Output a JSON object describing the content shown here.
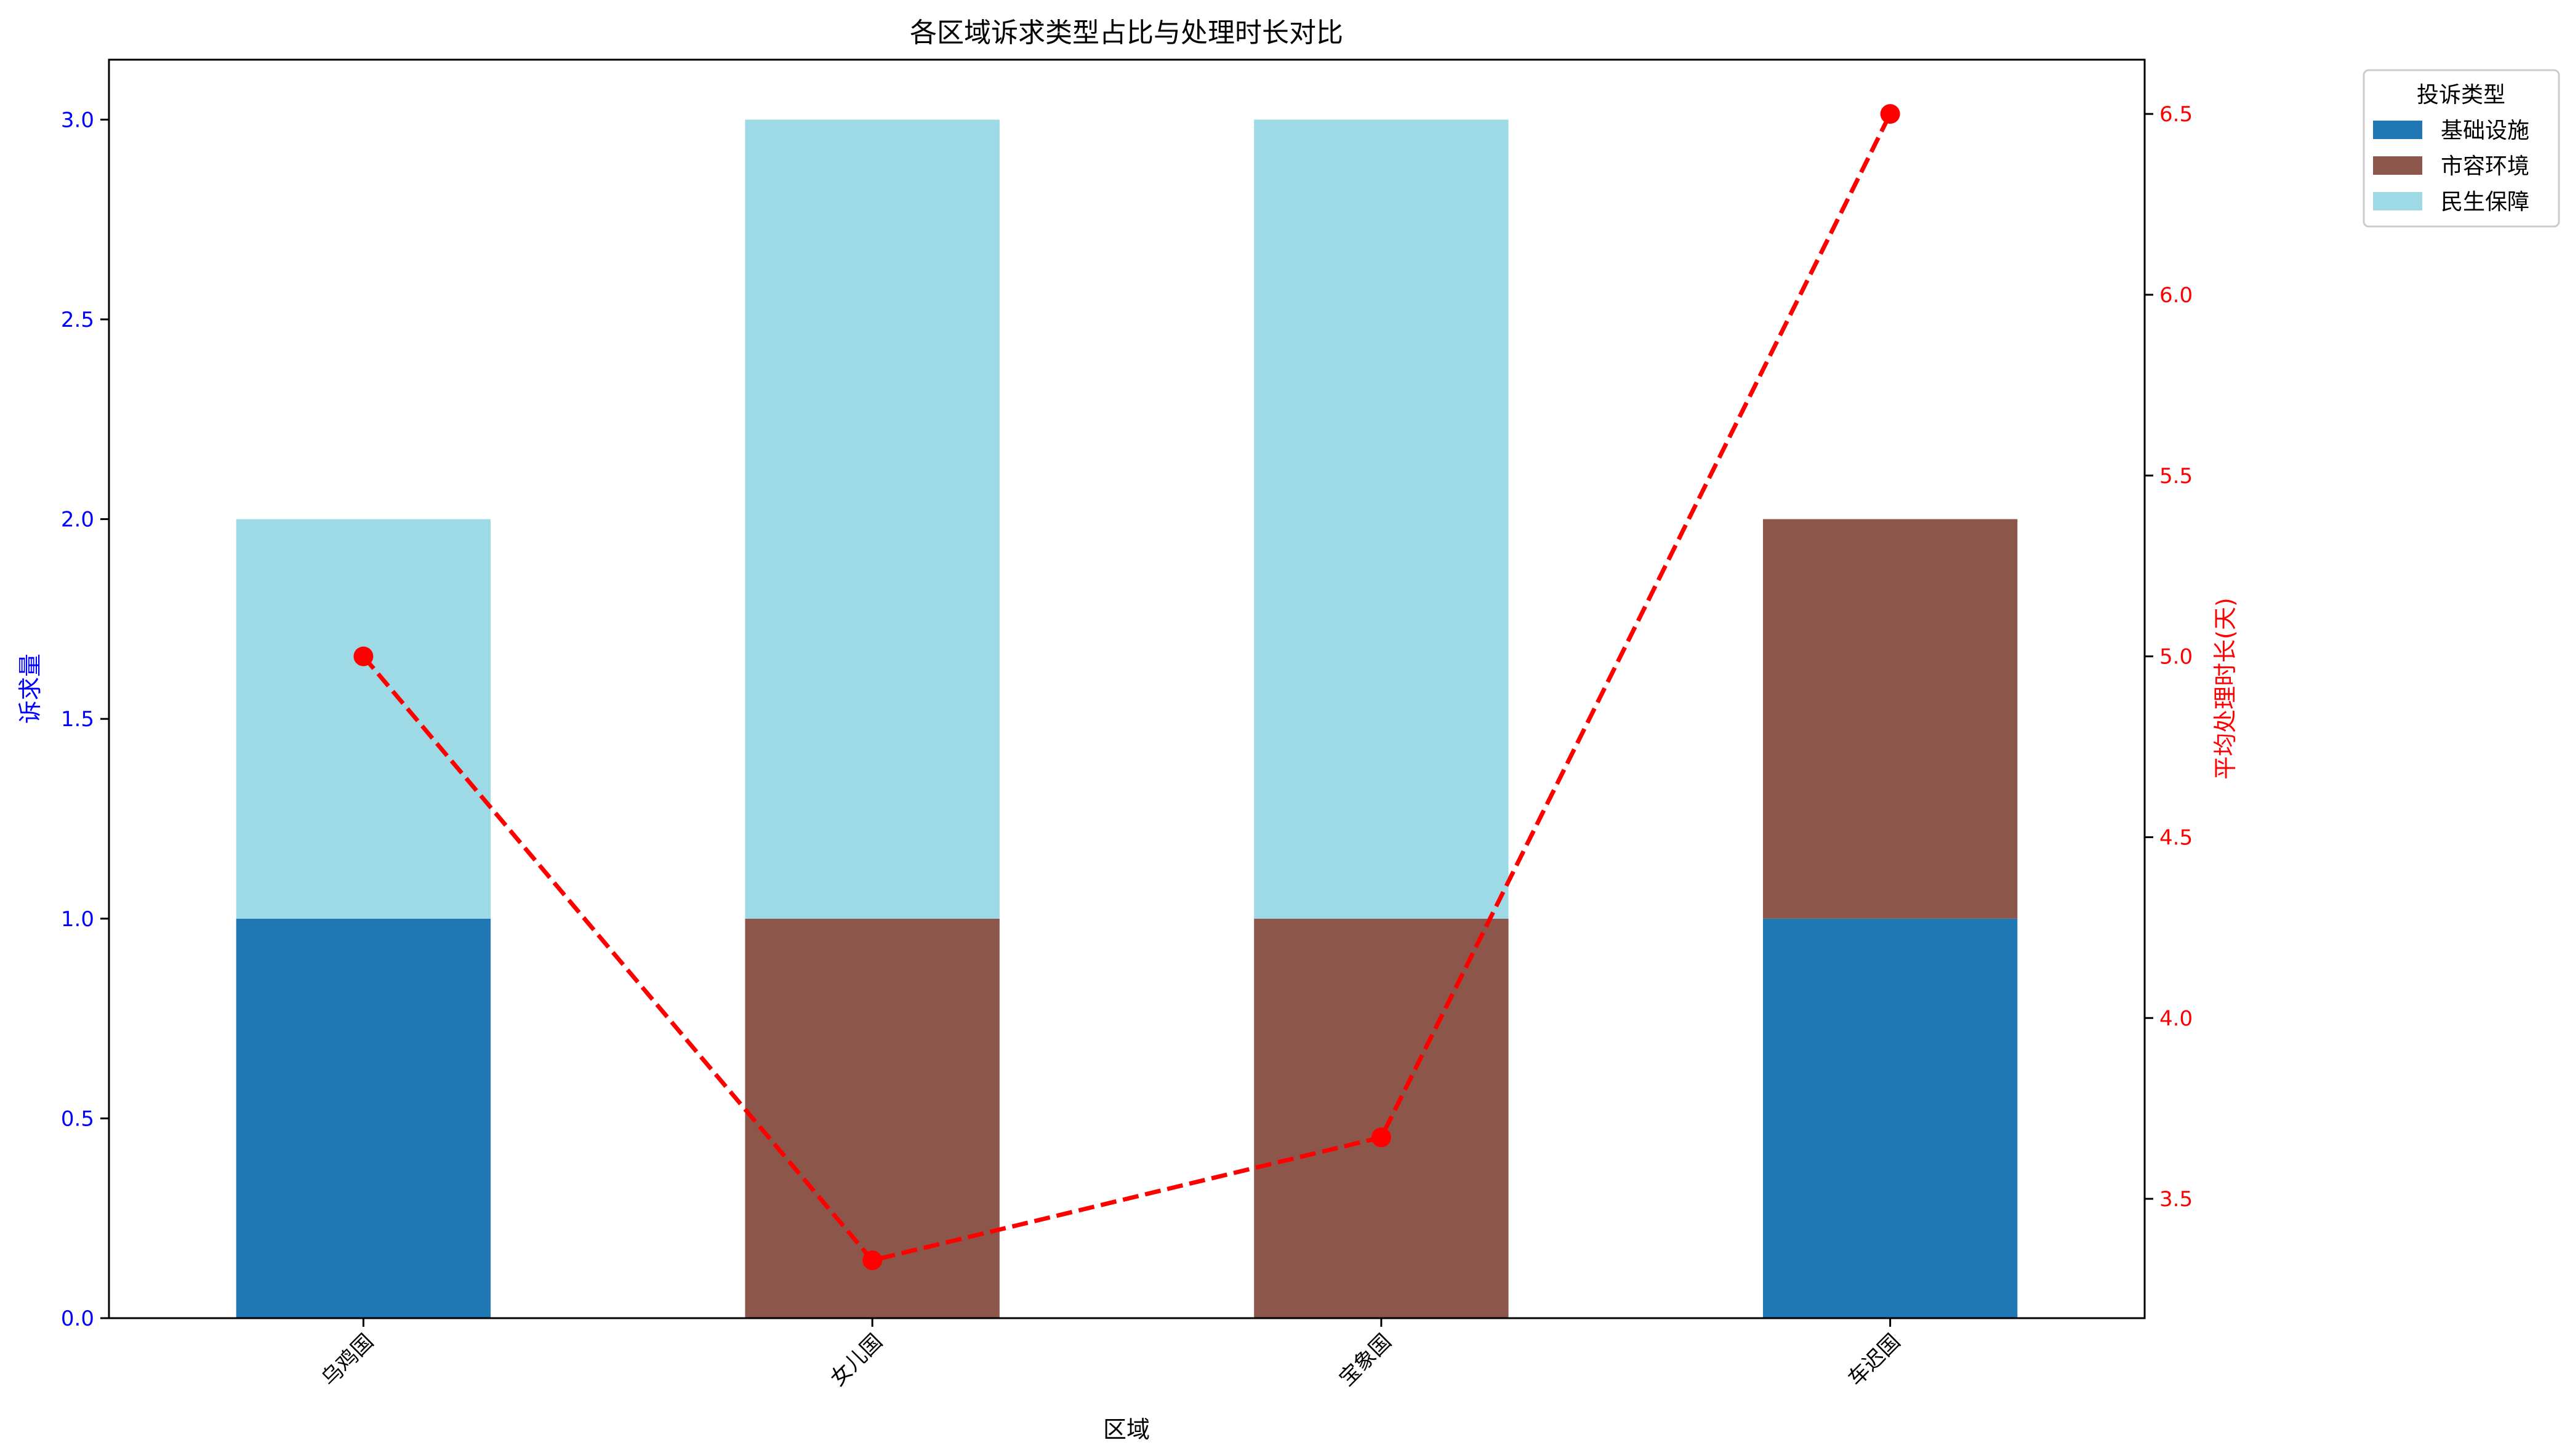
{
  "chart_data": {
    "type": "bar",
    "title": "各区域诉求类型占比与处理时长对比",
    "xlabel": "区域",
    "ylabel": "诉求量",
    "y2label": "平均处理时长(天)",
    "categories": [
      "乌鸡国",
      "女儿国",
      "宝象国",
      "车迟国"
    ],
    "stacked": true,
    "ylim": [
      0,
      3.15
    ],
    "yticks": [
      "0.0",
      "0.5",
      "1.0",
      "1.5",
      "2.0",
      "2.5",
      "3.0"
    ],
    "y2lim": [
      3.17,
      6.65
    ],
    "y2ticks": [
      "3.5",
      "4.0",
      "4.5",
      "5.0",
      "5.5",
      "6.0",
      "6.5"
    ],
    "series": [
      {
        "name": "基础设施",
        "color": "#1f77b4",
        "values": [
          1,
          0,
          0,
          1
        ]
      },
      {
        "name": "市容环境",
        "color": "#8c564b",
        "values": [
          0,
          1,
          1,
          1
        ]
      },
      {
        "name": "民生保障",
        "color": "#9edae5",
        "values": [
          1,
          2,
          2,
          0
        ]
      }
    ],
    "line": {
      "values": [
        5.0,
        3.33,
        3.67,
        6.5
      ],
      "color": "#ff0000",
      "style": "dashed",
      "marker": "circle"
    },
    "legend": {
      "title": "投诉类型",
      "placement": "outside-top-right"
    },
    "grid": false,
    "left_axis_color": "#0000ff",
    "right_axis_color": "#ff0000"
  }
}
